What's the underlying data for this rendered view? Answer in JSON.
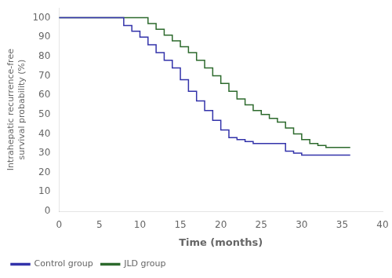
{
  "chart_data": {
    "type": "step",
    "xlabel": "Time (months)",
    "ylabel": "Intrahepatic recurrence-free\nsurvival probability (%)",
    "xlim": [
      0,
      40
    ],
    "ylim": [
      0,
      105
    ],
    "xticks": [
      0,
      5,
      10,
      15,
      20,
      25,
      30,
      35,
      40
    ],
    "yticks": [
      0,
      10,
      20,
      30,
      40,
      50,
      60,
      70,
      80,
      90,
      100
    ],
    "grid": false,
    "legend": "lower left",
    "series": [
      {
        "name": "Control group",
        "color": "#3333aa",
        "x": [
          0,
          7,
          8,
          9,
          10,
          11,
          12,
          13,
          14,
          15,
          16,
          17,
          18,
          19,
          20,
          21,
          22,
          23,
          24,
          25,
          26,
          27,
          28,
          29,
          30,
          36
        ],
        "values": [
          100,
          100,
          96,
          93,
          90,
          86,
          82,
          78,
          74,
          68,
          62,
          57,
          52,
          47,
          42,
          38,
          37,
          36,
          35,
          35,
          35,
          35,
          31,
          30,
          29,
          29
        ]
      },
      {
        "name": "JLD group",
        "color": "#2d6a2d",
        "x": [
          0,
          10,
          11,
          12,
          13,
          14,
          15,
          16,
          17,
          18,
          19,
          20,
          21,
          22,
          23,
          24,
          25,
          26,
          27,
          28,
          29,
          30,
          31,
          32,
          33,
          34,
          35,
          36
        ],
        "values": [
          100,
          100,
          97,
          94,
          91,
          88,
          85,
          82,
          78,
          74,
          70,
          66,
          62,
          58,
          55,
          52,
          50,
          48,
          46,
          43,
          40,
          37,
          35,
          34,
          33,
          33,
          33,
          33
        ]
      }
    ]
  }
}
